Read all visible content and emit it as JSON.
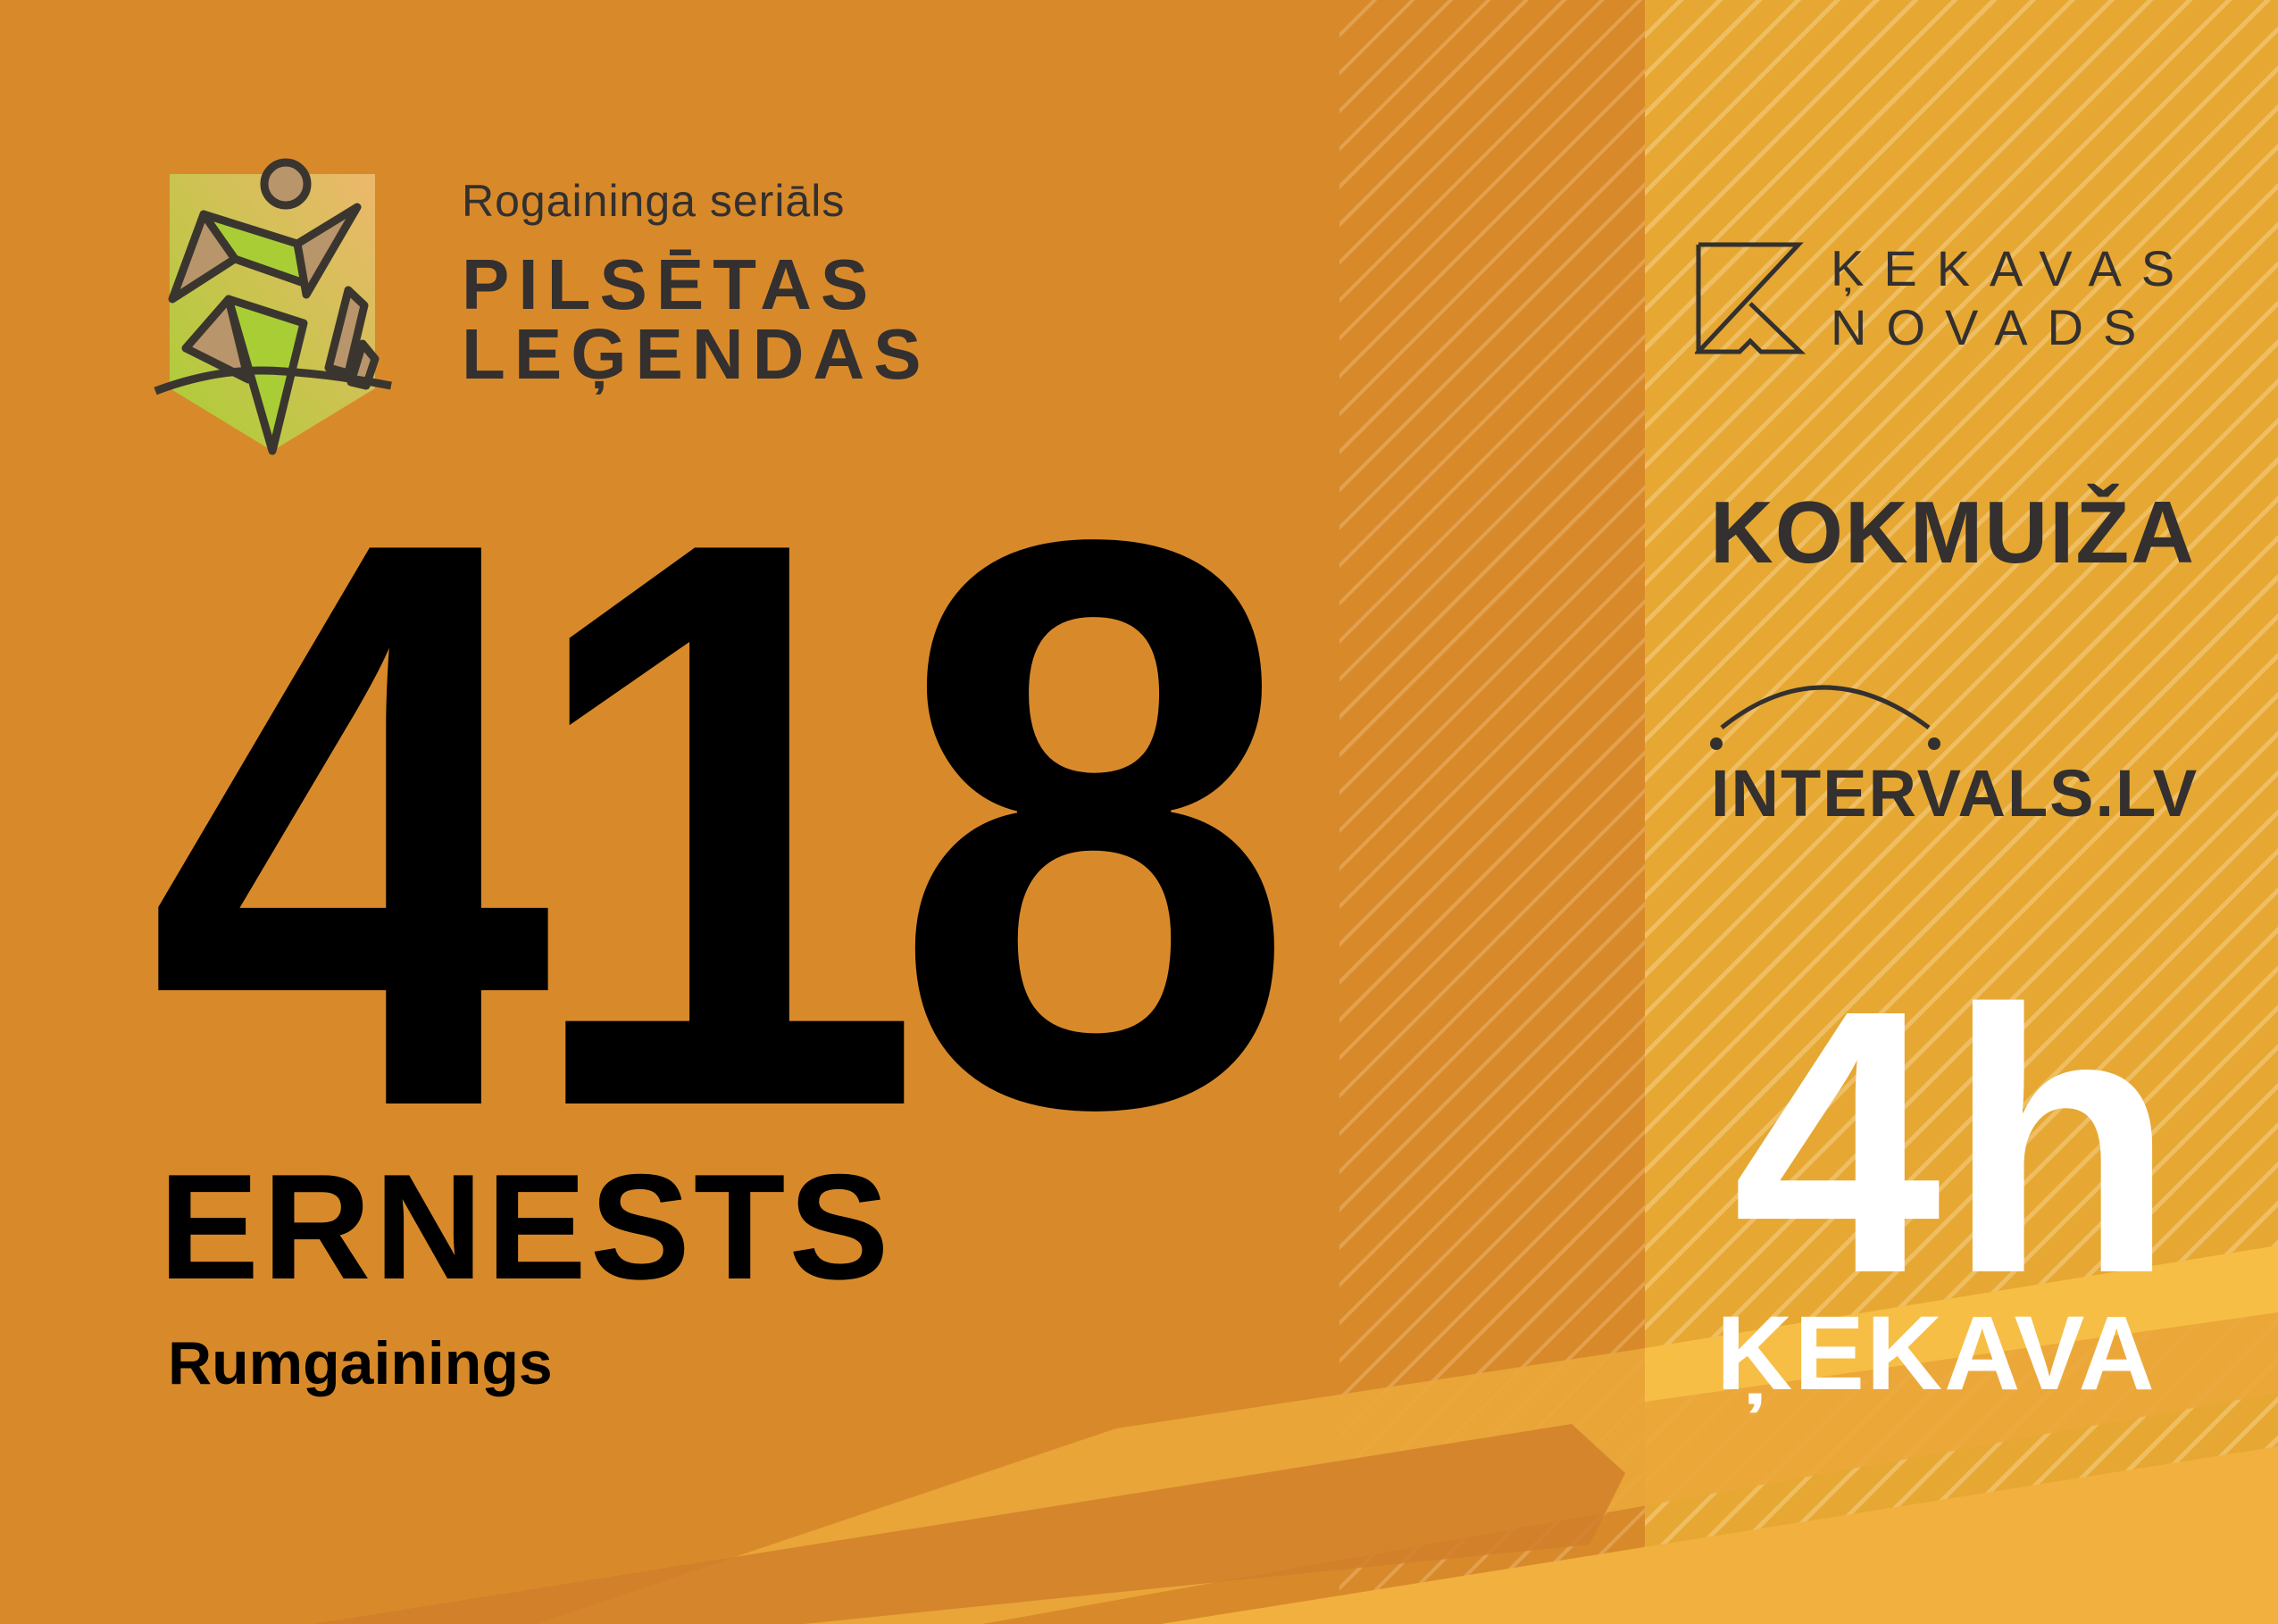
{
  "colors": {
    "left_panel": "#D88A2B",
    "right_panel": "#E6A832",
    "text_dark": "#33302F",
    "logo_green": "#A9CE35",
    "logo_brown": "#B8956A"
  },
  "series": {
    "subtitle": "Rogaininga seriāls",
    "title_line1": "PILSĒTAS",
    "title_line2": "LEĢENDAS"
  },
  "bib": {
    "number": "418",
    "name": "ERNESTS",
    "team": "Rumgainings"
  },
  "sponsors": {
    "kekavas_line1": "ĶEKAVAS",
    "kekavas_line2": "NOVADS",
    "kokmuiza": "KOKMUIŽA",
    "intervals": "INTERVALS.LV"
  },
  "event": {
    "duration": "4h",
    "location": "ĶEKAVA"
  }
}
